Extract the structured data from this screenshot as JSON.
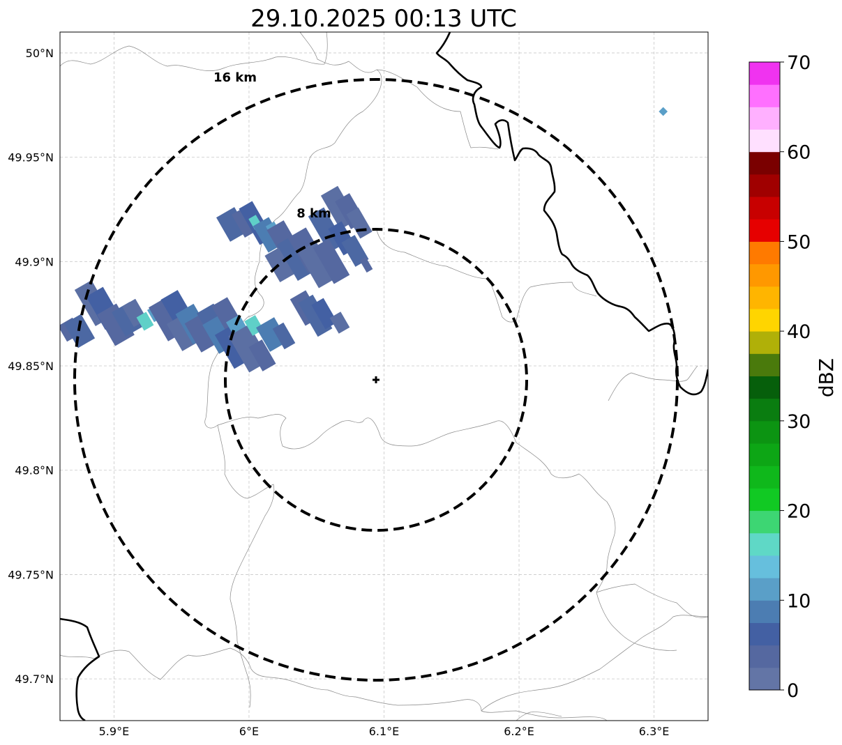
{
  "title": "29.10.2025 00:13 UTC",
  "map": {
    "lon_range": [
      5.86,
      6.34
    ],
    "lat_range": [
      49.68,
      50.01
    ],
    "lon_ticks": [
      {
        "value": 5.9,
        "label": "5.9°E"
      },
      {
        "value": 6.0,
        "label": "6°E"
      },
      {
        "value": 6.1,
        "label": "6.1°E"
      },
      {
        "value": 6.2,
        "label": "6.2°E"
      },
      {
        "value": 6.3,
        "label": "6.3°E"
      }
    ],
    "lat_ticks": [
      {
        "value": 49.7,
        "label": "49.7°N"
      },
      {
        "value": 49.75,
        "label": "49.75°N"
      },
      {
        "value": 49.8,
        "label": "49.8°N"
      },
      {
        "value": 49.85,
        "label": "49.85°N"
      },
      {
        "value": 49.9,
        "label": "49.9°N"
      },
      {
        "value": 49.95,
        "label": "49.95°N"
      },
      {
        "value": 50.0,
        "label": "50°N"
      }
    ],
    "grid": true,
    "center": {
      "lon": 6.095,
      "lat": 49.843
    },
    "rings": [
      {
        "radius_km": 8,
        "label": "8 km"
      },
      {
        "radius_km": 16,
        "label": "16 km"
      }
    ],
    "radar_echo_color_low": "#5b6fa3",
    "radar_echo_color_mid": "#4b8ac0",
    "radar_echo_color_high": "#5fd0c8"
  },
  "colorbar": {
    "label": "dBZ",
    "ticks": [
      "0",
      "10",
      "20",
      "30",
      "40",
      "50",
      "60",
      "70"
    ],
    "colors": [
      "#6375a6",
      "#5568a0",
      "#4360a3",
      "#4c7db2",
      "#5a9fc8",
      "#66bfdd",
      "#5fd8c6",
      "#3dd673",
      "#11c923",
      "#0fb81b",
      "#0da615",
      "#0c9412",
      "#0a7d10",
      "#065f0b",
      "#4a7a0c",
      "#b0b008",
      "#ffd500",
      "#ffb500",
      "#ff9800",
      "#ff7a00",
      "#e60000",
      "#c80000",
      "#a00000",
      "#7a0000",
      "#ffe0ff",
      "#ffb0ff",
      "#ff70ff",
      "#f033f0"
    ]
  }
}
